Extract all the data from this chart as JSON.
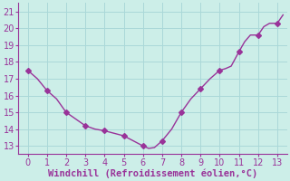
{
  "x": [
    0,
    0.5,
    1,
    1.5,
    2,
    2.5,
    3,
    3.5,
    4,
    4.5,
    5,
    5.5,
    6,
    6.3,
    6.6,
    7,
    7.5,
    8,
    8.5,
    9,
    9.5,
    10,
    10.3,
    10.6,
    11,
    11.3,
    11.6,
    12,
    12.3,
    12.6,
    13,
    13.3
  ],
  "y": [
    17.5,
    17.0,
    16.3,
    15.8,
    15.0,
    14.6,
    14.2,
    14.0,
    13.9,
    13.75,
    13.6,
    13.3,
    13.0,
    12.85,
    12.9,
    13.3,
    14.0,
    15.0,
    15.8,
    16.4,
    17.0,
    17.5,
    17.6,
    17.75,
    18.6,
    19.2,
    19.6,
    19.6,
    20.1,
    20.3,
    20.3,
    20.8
  ],
  "marker_x": [
    0,
    1,
    2,
    3,
    4,
    5,
    6,
    7,
    8,
    9,
    10,
    11,
    12,
    13
  ],
  "marker_y": [
    17.5,
    16.3,
    15.0,
    14.2,
    13.9,
    13.6,
    13.0,
    13.3,
    15.0,
    16.4,
    17.5,
    18.6,
    19.6,
    20.3
  ],
  "line_color": "#993399",
  "marker_color": "#993399",
  "bg_color": "#cceee8",
  "grid_color": "#aad8d8",
  "axis_color": "#993399",
  "tick_color": "#993399",
  "xlabel": "Windchill (Refroidissement éolien,°C)",
  "xlim": [
    -0.5,
    13.5
  ],
  "ylim": [
    12.5,
    21.5
  ],
  "xticks": [
    0,
    1,
    2,
    3,
    4,
    5,
    6,
    7,
    8,
    9,
    10,
    11,
    12,
    13
  ],
  "yticks": [
    13,
    14,
    15,
    16,
    17,
    18,
    19,
    20,
    21
  ],
  "xlabel_fontsize": 7.5,
  "tick_fontsize": 7,
  "line_width": 1.0,
  "marker_size": 3.0
}
